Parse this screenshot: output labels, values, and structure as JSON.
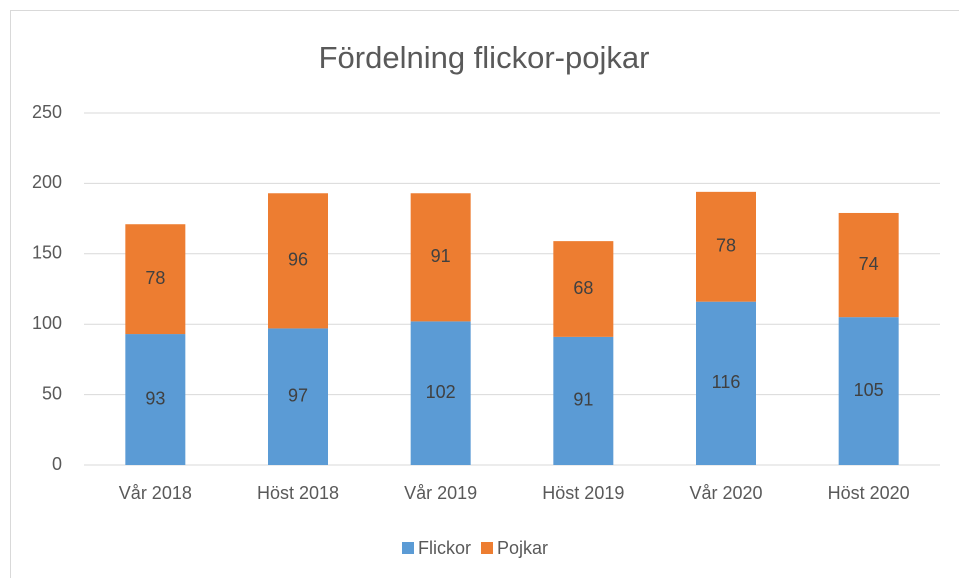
{
  "chart_data": {
    "type": "bar",
    "stacked": true,
    "title": "Fördelning flickor-pojkar",
    "categories": [
      "Vår 2018",
      "Höst 2018",
      "Vår 2019",
      "Höst 2019",
      "Vår 2020",
      "Höst 2020"
    ],
    "series": [
      {
        "name": "Flickor",
        "color": "#5b9bd5",
        "values": [
          93,
          97,
          102,
          91,
          116,
          105
        ]
      },
      {
        "name": "Pojkar",
        "color": "#ed7d31",
        "values": [
          78,
          96,
          91,
          68,
          78,
          74
        ]
      }
    ],
    "ylim": [
      0,
      250
    ],
    "yticks": [
      0,
      50,
      100,
      150,
      200,
      250
    ],
    "grid": true,
    "legend": "bottom"
  }
}
